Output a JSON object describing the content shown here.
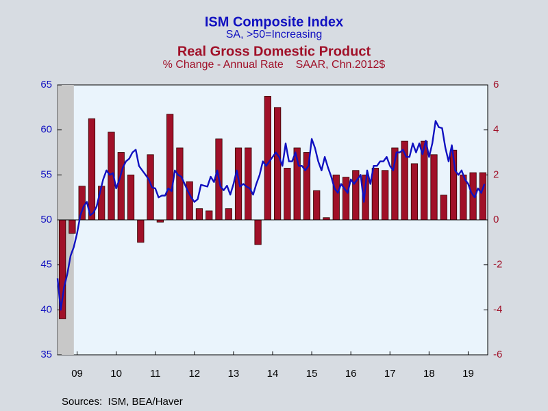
{
  "chart_data": {
    "type": "combo",
    "series": [
      {
        "name": "ISM Composite Index",
        "subtitle": "SA, >50=Increasing",
        "type": "line",
        "axis": "y",
        "color": "#1010c0",
        "x": [
          2009,
          2009.083,
          2009.167,
          2009.25,
          2009.333,
          2009.417,
          2009.5,
          2009.583,
          2009.667,
          2009.75,
          2009.833,
          2009.917,
          2010,
          2010.083,
          2010.167,
          2010.25,
          2010.333,
          2010.417,
          2010.5,
          2010.583,
          2010.667,
          2010.75,
          2010.833,
          2010.917,
          2011,
          2011.083,
          2011.167,
          2011.25,
          2011.333,
          2011.417,
          2011.5,
          2011.583,
          2011.667,
          2011.75,
          2011.833,
          2011.917,
          2012,
          2012.083,
          2012.167,
          2012.25,
          2012.333,
          2012.417,
          2012.5,
          2012.583,
          2012.667,
          2012.75,
          2012.833,
          2012.917,
          2013,
          2013.083,
          2013.167,
          2013.25,
          2013.333,
          2013.417,
          2013.5,
          2013.583,
          2013.667,
          2013.75,
          2013.833,
          2013.917,
          2014,
          2014.083,
          2014.167,
          2014.25,
          2014.333,
          2014.417,
          2014.5,
          2014.583,
          2014.667,
          2014.75,
          2014.833,
          2014.917,
          2015,
          2015.083,
          2015.167,
          2015.25,
          2015.333,
          2015.417,
          2015.5,
          2015.583,
          2015.667,
          2015.75,
          2015.833,
          2015.917,
          2016,
          2016.083,
          2016.167,
          2016.25,
          2016.333,
          2016.417,
          2016.5,
          2016.583,
          2016.667,
          2016.75,
          2016.833,
          2016.917,
          2017,
          2017.083,
          2017.167,
          2017.25,
          2017.333,
          2017.417,
          2017.5,
          2017.583,
          2017.667,
          2017.75,
          2017.833,
          2017.917,
          2018,
          2018.083,
          2018.167,
          2018.25,
          2018.333,
          2018.417,
          2018.5,
          2018.583,
          2018.667,
          2018.75,
          2018.833,
          2018.917,
          2019,
          2019.083,
          2019.167,
          2019.25,
          2019.333,
          2019.417,
          2019.5,
          2019.583,
          2019.667,
          2019.75,
          2019.833,
          2019.917
        ],
        "values": [
          43.5,
          40.0,
          42.5,
          44.0,
          46.0,
          47.0,
          48.5,
          50.5,
          51.5,
          52.0,
          50.5,
          50.8,
          51.5,
          53.0,
          54.5,
          55.5,
          55.0,
          55.2,
          53.5,
          54.5,
          55.8,
          56.5,
          56.8,
          57.5,
          57.8,
          56.0,
          55.5,
          55.0,
          54.5,
          53.6,
          53.5,
          52.5,
          52.7,
          52.7,
          53.5,
          53.2,
          55.5,
          55.0,
          54.8,
          54.0,
          53.2,
          52.5,
          52.0,
          52.3,
          53.9,
          53.8,
          53.7,
          54.8,
          54.2,
          55.5,
          53.7,
          53.3,
          53.8,
          52.8,
          54.0,
          55.5,
          53.7,
          54.0,
          53.7,
          53.5,
          52.8,
          54.0,
          55.0,
          56.5,
          56.0,
          56.5,
          57.0,
          57.5,
          57.0,
          56.0,
          58.5,
          56.5,
          56.5,
          57.5,
          56.0,
          56.0,
          55.5,
          56.0,
          59.0,
          58.0,
          56.5,
          55.5,
          57.0,
          55.8,
          54.8,
          53.5,
          53.0,
          54.0,
          53.5,
          53.0,
          54.5,
          54.0,
          54.5,
          55.0,
          52.0,
          55.5,
          54.0,
          56.0,
          56.0,
          56.5,
          56.5,
          57.0,
          56.0,
          55.5,
          57.5,
          57.5,
          57.8,
          57.0,
          57.0,
          58.5,
          57.5,
          58.5,
          57.3,
          58.8,
          57.0,
          58.5,
          61.0,
          60.3,
          60.2,
          58.0,
          56.5,
          58.3,
          55.5,
          55.0,
          55.5,
          54.5,
          54.0,
          53.0,
          52.5,
          53.5,
          53.0,
          54.0
        ]
      },
      {
        "name": "Real Gross Domestic Product",
        "subtitle": "% Change - Annual Rate    SAAR, Chn.2012$",
        "type": "bar",
        "axis": "y2",
        "color": "#a01028",
        "x": [
          2009.125,
          2009.375,
          2009.625,
          2009.875,
          2010.125,
          2010.375,
          2010.625,
          2010.875,
          2011.125,
          2011.375,
          2011.625,
          2011.875,
          2012.125,
          2012.375,
          2012.625,
          2012.875,
          2013.125,
          2013.375,
          2013.625,
          2013.875,
          2014.125,
          2014.375,
          2014.625,
          2014.875,
          2015.125,
          2015.375,
          2015.625,
          2015.875,
          2016.125,
          2016.375,
          2016.625,
          2016.875,
          2017.125,
          2017.375,
          2017.625,
          2017.875,
          2018.125,
          2018.375,
          2018.625,
          2018.875,
          2019.125,
          2019.375,
          2019.625,
          2019.875
        ],
        "values": [
          -4.4,
          -0.6,
          1.5,
          4.5,
          1.5,
          3.9,
          3.0,
          2.0,
          -1.0,
          2.9,
          -0.1,
          4.7,
          3.2,
          1.7,
          0.5,
          0.4,
          3.6,
          0.5,
          3.2,
          3.2,
          -1.1,
          5.5,
          5.0,
          2.3,
          3.2,
          3.0,
          1.3,
          0.1,
          2.0,
          1.9,
          2.2,
          2.0,
          2.3,
          2.2,
          3.2,
          3.5,
          2.5,
          3.5,
          2.9,
          1.1,
          3.1,
          2.0,
          2.1,
          2.1
        ]
      }
    ],
    "xlim": [
      2009,
      2020
    ],
    "xticks": [
      {
        "value": 2009.5,
        "label": "09"
      },
      {
        "value": 2010.5,
        "label": "10"
      },
      {
        "value": 2011.5,
        "label": "11"
      },
      {
        "value": 2012.5,
        "label": "12"
      },
      {
        "value": 2013.5,
        "label": "13"
      },
      {
        "value": 2014.5,
        "label": "14"
      },
      {
        "value": 2015.5,
        "label": "15"
      },
      {
        "value": 2016.5,
        "label": "16"
      },
      {
        "value": 2017.5,
        "label": "17"
      },
      {
        "value": 2018.5,
        "label": "18"
      },
      {
        "value": 2019.5,
        "label": "19"
      }
    ],
    "ylim": [
      35,
      65
    ],
    "yticks": [
      35,
      40,
      45,
      50,
      55,
      60,
      65
    ],
    "y2lim": [
      -6,
      6
    ],
    "y2ticks": [
      -6,
      -4,
      -2,
      0,
      2,
      4,
      6
    ],
    "recession": [
      2009,
      2009.417
    ],
    "source": "Sources:  ISM, BEA/Haver"
  }
}
